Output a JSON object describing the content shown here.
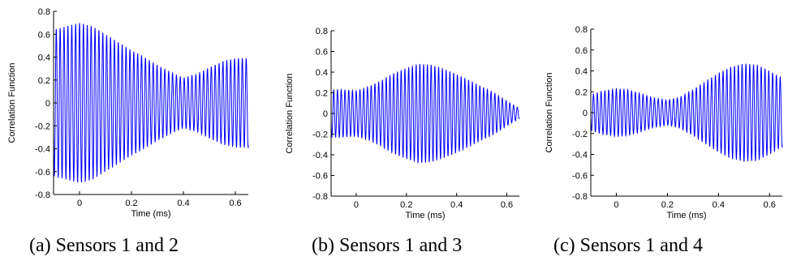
{
  "chart_data": [
    {
      "type": "line",
      "caption": "(a) Sensors 1 and 2",
      "xlabel": "Time (ms)",
      "ylabel": "Correlation Function",
      "xlim": [
        -0.1,
        0.65
      ],
      "ylim": [
        -0.8,
        0.8
      ],
      "xticks": [
        0,
        0.2,
        0.4,
        0.6
      ],
      "yticks": [
        -0.8,
        -0.6,
        -0.4,
        -0.2,
        0,
        0.2,
        0.4,
        0.6,
        0.8
      ],
      "series_color": "#0000ff",
      "frequency_khz": 67,
      "series": [
        {
          "x": [
            -0.1,
            -0.05,
            0,
            0.05,
            0.1,
            0.15,
            0.2,
            0.25,
            0.3,
            0.35,
            0.4,
            0.45,
            0.5,
            0.55,
            0.6,
            0.65
          ],
          "envelope": [
            0.64,
            0.67,
            0.7,
            0.67,
            0.6,
            0.53,
            0.46,
            0.4,
            0.33,
            0.27,
            0.22,
            0.25,
            0.31,
            0.36,
            0.39,
            0.39
          ]
        }
      ]
    },
    {
      "type": "line",
      "caption": "(b) Sensors 1 and 3",
      "xlabel": "Time (ms)",
      "ylabel": "Correlation Function",
      "xlim": [
        -0.1,
        0.65
      ],
      "ylim": [
        -0.8,
        0.8
      ],
      "xticks": [
        0,
        0.2,
        0.4,
        0.6
      ],
      "yticks": [
        -0.8,
        -0.6,
        -0.4,
        -0.2,
        0,
        0.2,
        0.4,
        0.6,
        0.8
      ],
      "series_color": "#0000ff",
      "frequency_khz": 67,
      "series": [
        {
          "x": [
            -0.1,
            -0.05,
            0,
            0.05,
            0.1,
            0.15,
            0.2,
            0.25,
            0.3,
            0.35,
            0.4,
            0.45,
            0.5,
            0.55,
            0.6,
            0.65
          ],
          "envelope": [
            0.23,
            0.23,
            0.22,
            0.26,
            0.32,
            0.39,
            0.44,
            0.48,
            0.47,
            0.43,
            0.38,
            0.32,
            0.26,
            0.2,
            0.12,
            0.05
          ]
        }
      ]
    },
    {
      "type": "line",
      "caption": "(c) Sensors 1 and 4",
      "xlabel": "Time (ms)",
      "ylabel": "Correlation Function",
      "xlim": [
        -0.1,
        0.65
      ],
      "ylim": [
        -0.8,
        0.8
      ],
      "xticks": [
        0,
        0.2,
        0.4,
        0.6
      ],
      "yticks": [
        -0.8,
        -0.6,
        -0.4,
        -0.2,
        0,
        0.2,
        0.4,
        0.6,
        0.8
      ],
      "series_color": "#0000ff",
      "frequency_khz": 67,
      "series": [
        {
          "x": [
            -0.1,
            -0.05,
            0,
            0.05,
            0.1,
            0.15,
            0.2,
            0.25,
            0.3,
            0.35,
            0.4,
            0.45,
            0.5,
            0.55,
            0.6,
            0.65
          ],
          "envelope": [
            0.17,
            0.21,
            0.23,
            0.22,
            0.18,
            0.14,
            0.12,
            0.15,
            0.22,
            0.3,
            0.38,
            0.44,
            0.47,
            0.46,
            0.4,
            0.33
          ]
        }
      ]
    }
  ]
}
